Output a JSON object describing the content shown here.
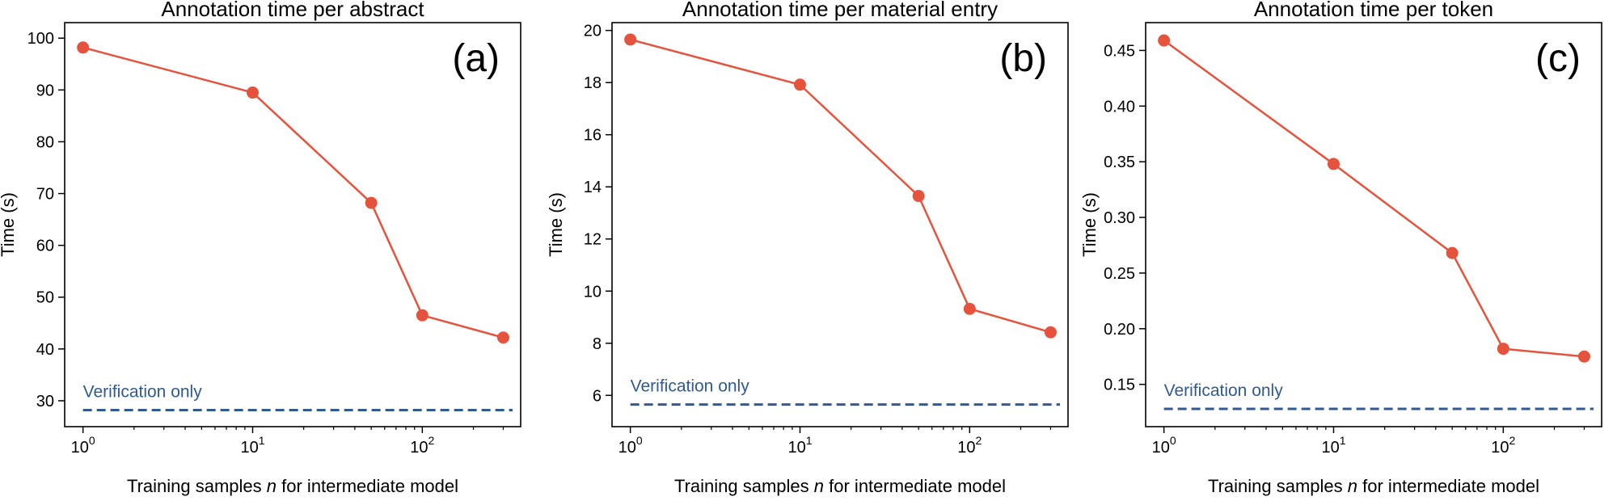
{
  "chart_data": [
    {
      "type": "line",
      "panel_label": "(a)",
      "title": "Annotation time per abstract",
      "xlabel_prefix": "Training samples ",
      "xlabel_var": "n",
      "xlabel_suffix": " for intermediate model",
      "ylabel": "Time (s)",
      "xscale": "log",
      "xlim": [
        0.78,
        380
      ],
      "ylim": [
        25,
        103
      ],
      "xticks": [
        {
          "value": 1,
          "base": "10",
          "exp": "0"
        },
        {
          "value": 10,
          "base": "10",
          "exp": "1"
        },
        {
          "value": 100,
          "base": "10",
          "exp": "2"
        }
      ],
      "yticks": [
        {
          "value": 30,
          "label": "30"
        },
        {
          "value": 40,
          "label": "40"
        },
        {
          "value": 50,
          "label": "50"
        },
        {
          "value": 60,
          "label": "60"
        },
        {
          "value": 70,
          "label": "70"
        },
        {
          "value": 80,
          "label": "80"
        },
        {
          "value": 90,
          "label": "90"
        },
        {
          "value": 100,
          "label": "100"
        }
      ],
      "series": [
        {
          "name": "Annotation time",
          "color": "#e5533d",
          "x": [
            1,
            10,
            50,
            100,
            300
          ],
          "y": [
            98.2,
            89.5,
            68.2,
            46.5,
            42.2
          ]
        }
      ],
      "reference": {
        "label": "Verification only",
        "value": 28.2,
        "color": "#2f5a94"
      }
    },
    {
      "type": "line",
      "panel_label": "(b)",
      "title": "Annotation time per material entry",
      "xlabel_prefix": "Training samples ",
      "xlabel_var": "n",
      "xlabel_suffix": " for intermediate model",
      "ylabel": "Time (s)",
      "xscale": "log",
      "xlim": [
        0.78,
        380
      ],
      "ylim": [
        4.8,
        20.3
      ],
      "xticks": [
        {
          "value": 1,
          "base": "10",
          "exp": "0"
        },
        {
          "value": 10,
          "base": "10",
          "exp": "1"
        },
        {
          "value": 100,
          "base": "10",
          "exp": "2"
        }
      ],
      "yticks": [
        {
          "value": 6,
          "label": "6"
        },
        {
          "value": 8,
          "label": "8"
        },
        {
          "value": 10,
          "label": "10"
        },
        {
          "value": 12,
          "label": "12"
        },
        {
          "value": 14,
          "label": "14"
        },
        {
          "value": 16,
          "label": "16"
        },
        {
          "value": 18,
          "label": "18"
        },
        {
          "value": 20,
          "label": "20"
        }
      ],
      "series": [
        {
          "name": "Annotation time",
          "color": "#e5533d",
          "x": [
            1,
            10,
            50,
            100,
            300
          ],
          "y": [
            19.65,
            17.92,
            13.65,
            9.32,
            8.42
          ]
        }
      ],
      "reference": {
        "label": "Verification only",
        "value": 5.65,
        "color": "#2f5a94"
      }
    },
    {
      "type": "line",
      "panel_label": "(c)",
      "title": "Annotation time per token",
      "xlabel_prefix": "Training samples ",
      "xlabel_var": "n",
      "xlabel_suffix": " for intermediate model",
      "ylabel": "Time (s)",
      "xscale": "log",
      "xlim": [
        0.78,
        380
      ],
      "ylim": [
        0.112,
        0.475
      ],
      "xticks": [
        {
          "value": 1,
          "base": "10",
          "exp": "0"
        },
        {
          "value": 10,
          "base": "10",
          "exp": "1"
        },
        {
          "value": 100,
          "base": "10",
          "exp": "2"
        }
      ],
      "yticks": [
        {
          "value": 0.15,
          "label": "0.15"
        },
        {
          "value": 0.2,
          "label": "0.20"
        },
        {
          "value": 0.25,
          "label": "0.25"
        },
        {
          "value": 0.3,
          "label": "0.30"
        },
        {
          "value": 0.35,
          "label": "0.35"
        },
        {
          "value": 0.4,
          "label": "0.40"
        },
        {
          "value": 0.45,
          "label": "0.45"
        }
      ],
      "series": [
        {
          "name": "Annotation time",
          "color": "#e5533d",
          "x": [
            1,
            10,
            50,
            100,
            300
          ],
          "y": [
            0.459,
            0.348,
            0.268,
            0.182,
            0.175
          ]
        }
      ],
      "reference": {
        "label": "Verification only",
        "value": 0.128,
        "color": "#2f5a94"
      }
    }
  ]
}
